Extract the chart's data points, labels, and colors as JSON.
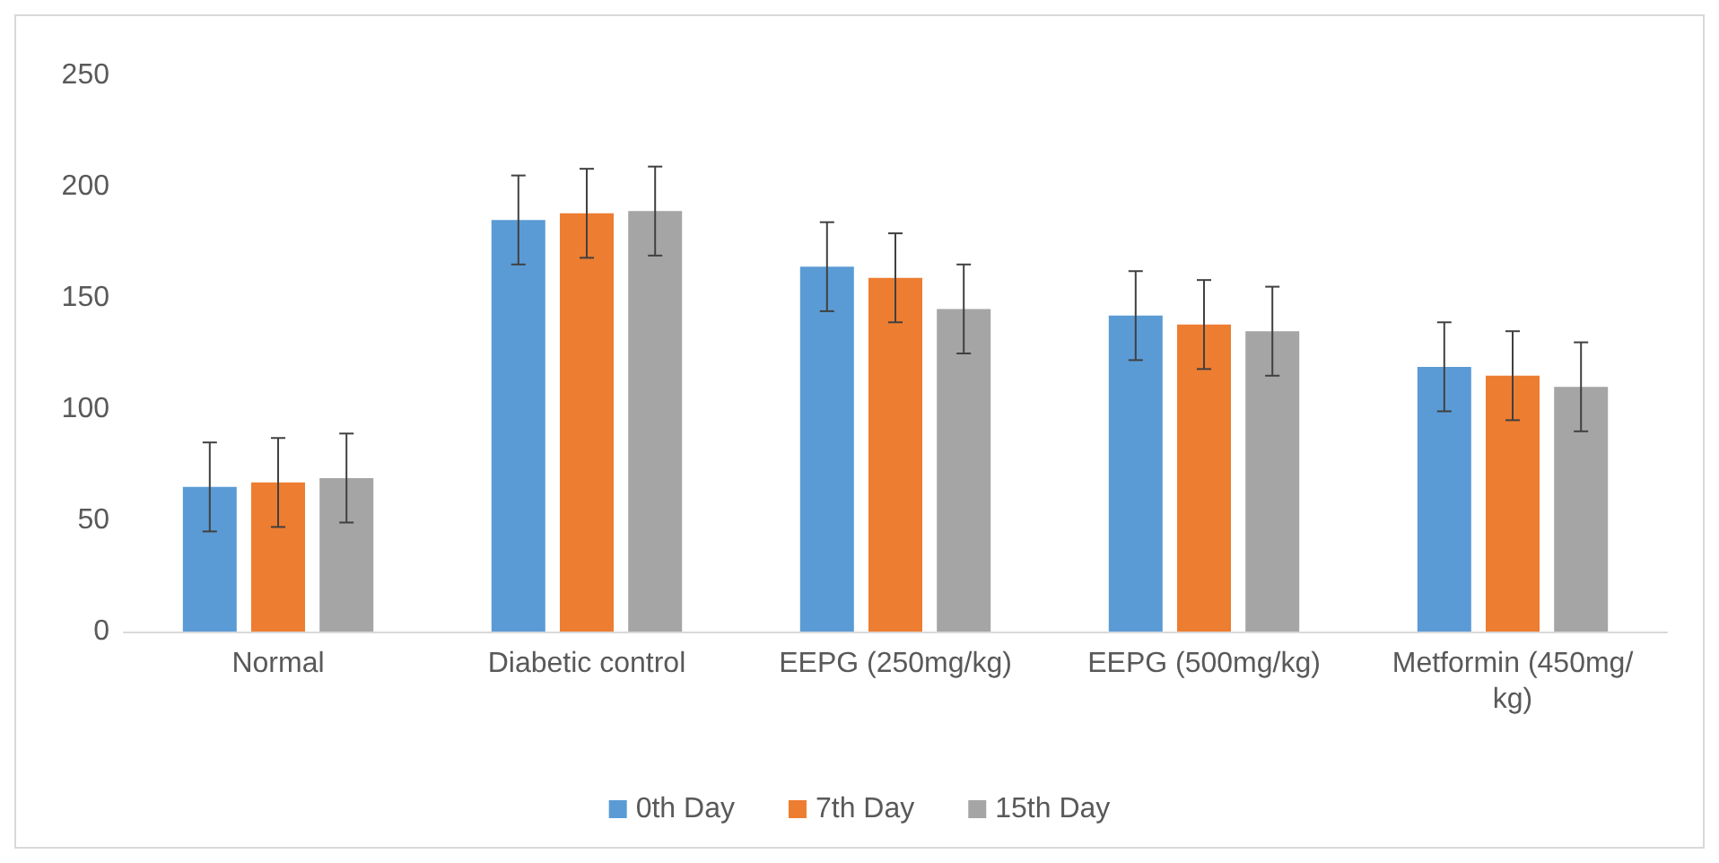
{
  "chart_data": {
    "type": "bar",
    "categories": [
      "Normal",
      "Diabetic control",
      "EEPG (250mg/kg)",
      "EEPG (500mg/kg)",
      "Metformin (450mg/kg)"
    ],
    "series": [
      {
        "name": "0th Day",
        "color": "#5b9bd5",
        "values": [
          65,
          185,
          164,
          142,
          119
        ],
        "errors": [
          20,
          20,
          20,
          20,
          20
        ]
      },
      {
        "name": "7th Day",
        "color": "#ed7d31",
        "values": [
          67,
          188,
          159,
          138,
          115
        ],
        "errors": [
          20,
          20,
          20,
          20,
          20
        ]
      },
      {
        "name": "15th Day",
        "color": "#a5a5a5",
        "values": [
          69,
          189,
          145,
          135,
          110
        ],
        "errors": [
          20,
          20,
          20,
          20,
          20
        ]
      }
    ],
    "ylim": [
      0,
      250
    ],
    "yticks": [
      0,
      50,
      100,
      150,
      200,
      250
    ],
    "grid": false,
    "legend": "bottom"
  }
}
